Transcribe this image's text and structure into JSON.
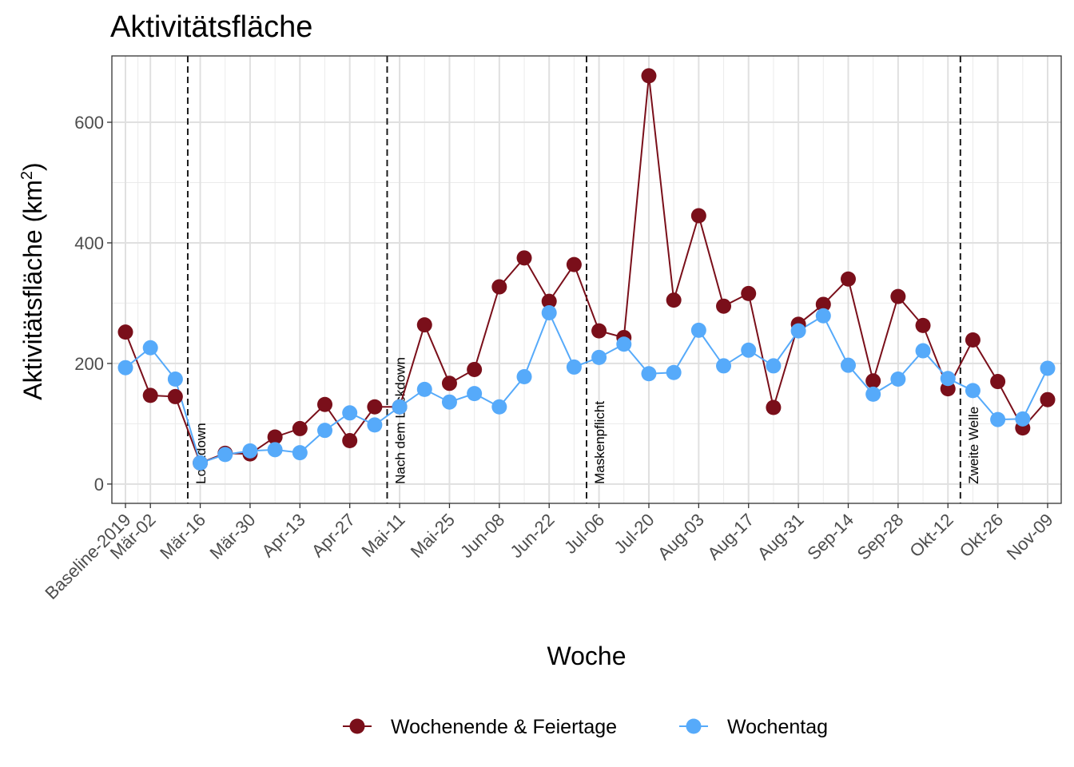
{
  "chart_data": {
    "type": "line",
    "title": "Aktivitätsfläche",
    "xlabel": "Woche",
    "ylabel_main": "Aktivitätsfläche (km",
    "ylabel_sup": "2",
    "ylabel_end": ")",
    "ylim": [
      -32,
      710
    ],
    "y_ticks": [
      0,
      200,
      400,
      600
    ],
    "x_tick_labels": [
      "Baseline-2019",
      "Mär-02",
      "Mär-16",
      "Mär-30",
      "Apr-13",
      "Apr-27",
      "Mai-11",
      "Mai-25",
      "Jun-08",
      "Jun-22",
      "Jul-06",
      "Jul-20",
      "Aug-03",
      "Aug-17",
      "Aug-31",
      "Sep-14",
      "Sep-28",
      "Okt-12",
      "Okt-26",
      "Nov-09"
    ],
    "x_tick_positions": [
      0,
      1,
      3,
      5,
      7,
      9,
      11,
      13,
      15,
      17,
      19,
      21,
      23,
      25,
      27,
      29,
      31,
      33,
      35,
      37
    ],
    "grid": true,
    "legend_position": "bottom",
    "vertical_lines": [
      {
        "x": 2.5,
        "label": "Lockdown"
      },
      {
        "x": 10.5,
        "label": "Nach dem Lockdown"
      },
      {
        "x": 18.5,
        "label": "Maskenpflicht"
      },
      {
        "x": 33.5,
        "label": "Zweite Welle"
      }
    ],
    "series": [
      {
        "name": "Wochenende & Feiertage",
        "color": "#7a0f1a",
        "values": [
          252,
          147,
          145,
          35,
          51,
          50,
          78,
          92,
          132,
          72,
          128,
          128,
          264,
          167,
          190,
          327,
          375,
          303,
          364,
          254,
          243,
          677,
          305,
          445,
          295,
          316,
          127,
          265,
          298,
          340,
          171,
          311,
          263,
          158,
          239,
          170,
          93,
          140
        ]
      },
      {
        "name": "Wochentag",
        "color": "#56aafa",
        "values": [
          193,
          226,
          174,
          35,
          49,
          55,
          57,
          52,
          89,
          118,
          98,
          128,
          157,
          136,
          150,
          128,
          178,
          284,
          194,
          210,
          232,
          183,
          185,
          255,
          196,
          222,
          196,
          254,
          279,
          197,
          149,
          174,
          221,
          175,
          155,
          107,
          108,
          192
        ]
      }
    ]
  }
}
